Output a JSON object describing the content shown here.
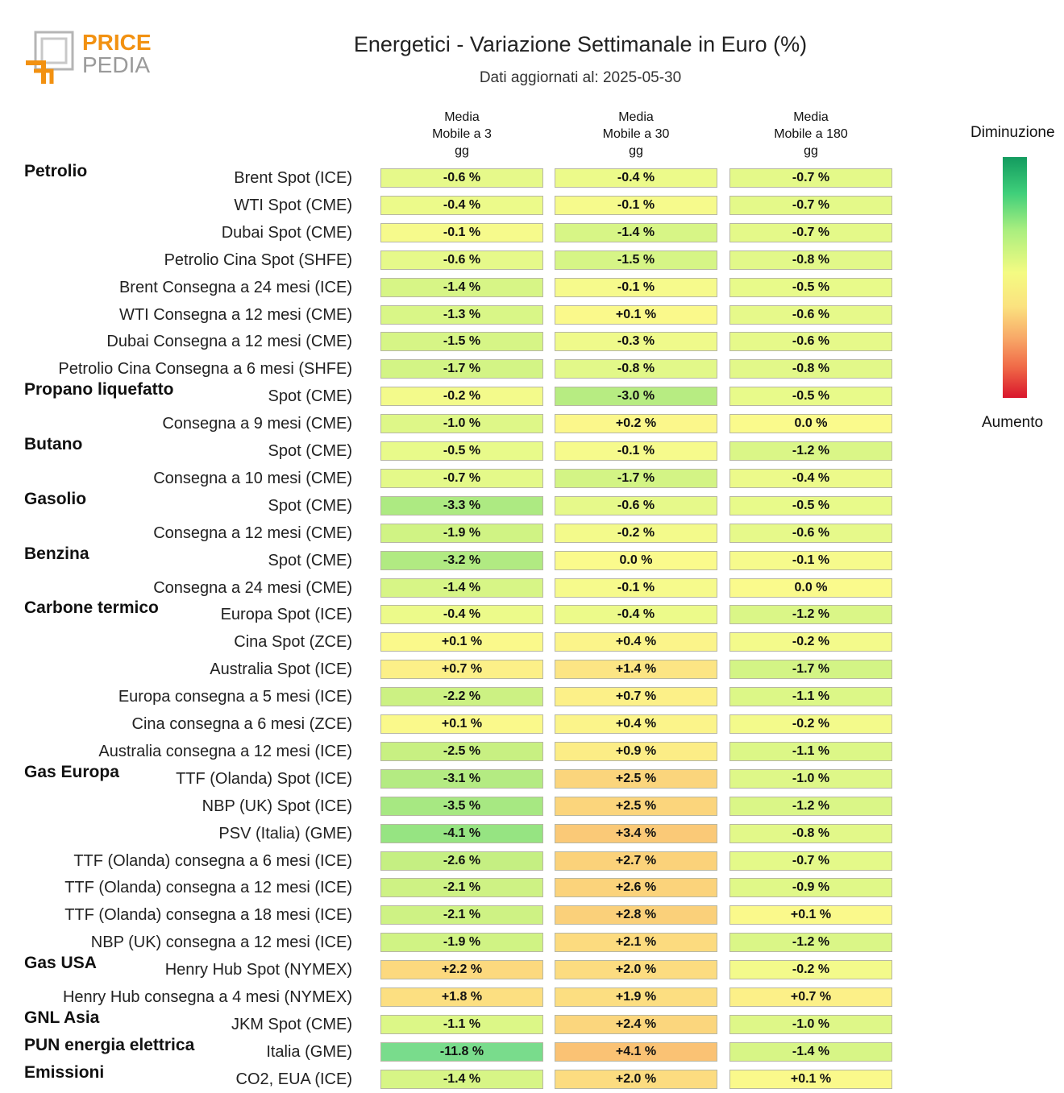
{
  "brand": {
    "line1": "PRICE",
    "line2": "PEDIA"
  },
  "title": "Energetici - Variazione Settimanale in Euro (%)",
  "subtitle": "Dati aggiornati al: 2025-05-30",
  "legend": {
    "top": "Diminuzione",
    "bottom": "Aumento"
  },
  "chart_data": {
    "type": "table",
    "columns": [
      "Media\nMobile a 3\ngg",
      "Media\nMobile a 30\ngg",
      "Media\nMobile a 180\ngg"
    ],
    "value_format": "percent",
    "rows": [
      {
        "group": "Petrolio",
        "label": "Brent Spot (ICE)",
        "values": [
          "-0.6 %",
          "-0.4 %",
          "-0.7 %"
        ]
      },
      {
        "group": "",
        "label": "WTI Spot (CME)",
        "values": [
          "-0.4 %",
          "-0.1 %",
          "-0.7 %"
        ]
      },
      {
        "group": "",
        "label": "Dubai Spot (CME)",
        "values": [
          "-0.1 %",
          "-1.4 %",
          "-0.7 %"
        ]
      },
      {
        "group": "",
        "label": "Petrolio Cina Spot (SHFE)",
        "values": [
          "-0.6 %",
          "-1.5 %",
          "-0.8 %"
        ]
      },
      {
        "group": "",
        "label": "Brent Consegna a 24 mesi (ICE)",
        "values": [
          "-1.4 %",
          "-0.1 %",
          "-0.5 %"
        ]
      },
      {
        "group": "",
        "label": "WTI Consegna a 12 mesi (CME)",
        "values": [
          "-1.3 %",
          "+0.1 %",
          "-0.6 %"
        ]
      },
      {
        "group": "",
        "label": "Dubai Consegna a 12 mesi (CME)",
        "values": [
          "-1.5 %",
          "-0.3 %",
          "-0.6 %"
        ]
      },
      {
        "group": "",
        "label": "Petrolio Cina Consegna a 6 mesi (SHFE)",
        "values": [
          "-1.7 %",
          "-0.8 %",
          "-0.8 %"
        ]
      },
      {
        "group": "Propano liquefatto",
        "label": "Spot (CME)",
        "values": [
          "-0.2 %",
          "-3.0 %",
          "-0.5 %"
        ]
      },
      {
        "group": "",
        "label": "Consegna a 9 mesi (CME)",
        "values": [
          "-1.0 %",
          "+0.2 %",
          "0.0 %"
        ]
      },
      {
        "group": "Butano",
        "label": "Spot (CME)",
        "values": [
          "-0.5 %",
          "-0.1 %",
          "-1.2 %"
        ]
      },
      {
        "group": "",
        "label": "Consegna a 10 mesi (CME)",
        "values": [
          "-0.7 %",
          "-1.7 %",
          "-0.4 %"
        ]
      },
      {
        "group": "Gasolio",
        "label": "Spot (CME)",
        "values": [
          "-3.3 %",
          "-0.6 %",
          "-0.5 %"
        ]
      },
      {
        "group": "",
        "label": "Consegna a 12 mesi (CME)",
        "values": [
          "-1.9 %",
          "-0.2 %",
          "-0.6 %"
        ]
      },
      {
        "group": "Benzina",
        "label": "Spot (CME)",
        "values": [
          "-3.2 %",
          "0.0 %",
          "-0.1 %"
        ]
      },
      {
        "group": "",
        "label": "Consegna a 24 mesi (CME)",
        "values": [
          "-1.4 %",
          "-0.1 %",
          "0.0 %"
        ]
      },
      {
        "group": "Carbone termico",
        "label": "Europa Spot (ICE)",
        "values": [
          "-0.4 %",
          "-0.4 %",
          "-1.2 %"
        ]
      },
      {
        "group": "",
        "label": "Cina Spot (ZCE)",
        "values": [
          "+0.1 %",
          "+0.4 %",
          "-0.2 %"
        ]
      },
      {
        "group": "",
        "label": "Australia Spot (ICE)",
        "values": [
          "+0.7 %",
          "+1.4 %",
          "-1.7 %"
        ]
      },
      {
        "group": "",
        "label": "Europa consegna a 5 mesi (ICE)",
        "values": [
          "-2.2 %",
          "+0.7 %",
          "-1.1 %"
        ]
      },
      {
        "group": "",
        "label": "Cina consegna a 6 mesi (ZCE)",
        "values": [
          "+0.1 %",
          "+0.4 %",
          "-0.2 %"
        ]
      },
      {
        "group": "",
        "label": "Australia consegna a 12 mesi (ICE)",
        "values": [
          "-2.5 %",
          "+0.9 %",
          "-1.1 %"
        ]
      },
      {
        "group": "Gas Europa",
        "label": "TTF (Olanda) Spot (ICE)",
        "values": [
          "-3.1 %",
          "+2.5 %",
          "-1.0 %"
        ]
      },
      {
        "group": "",
        "label": "NBP (UK) Spot (ICE)",
        "values": [
          "-3.5 %",
          "+2.5 %",
          "-1.2 %"
        ]
      },
      {
        "group": "",
        "label": "PSV (Italia) (GME)",
        "values": [
          "-4.1 %",
          "+3.4 %",
          "-0.8 %"
        ]
      },
      {
        "group": "",
        "label": "TTF (Olanda) consegna a 6 mesi (ICE)",
        "values": [
          "-2.6 %",
          "+2.7 %",
          "-0.7 %"
        ]
      },
      {
        "group": "",
        "label": "TTF (Olanda) consegna a 12 mesi (ICE)",
        "values": [
          "-2.1 %",
          "+2.6 %",
          "-0.9 %"
        ]
      },
      {
        "group": "",
        "label": "TTF (Olanda) consegna a 18 mesi (ICE)",
        "values": [
          "-2.1 %",
          "+2.8 %",
          "+0.1 %"
        ]
      },
      {
        "group": "",
        "label": "NBP (UK) consegna a 12 mesi (ICE)",
        "values": [
          "-1.9 %",
          "+2.1 %",
          "-1.2 %"
        ]
      },
      {
        "group": "Gas USA",
        "label": "Henry Hub Spot (NYMEX)",
        "values": [
          "+2.2 %",
          "+2.0 %",
          "-0.2 %"
        ]
      },
      {
        "group": "",
        "label": "Henry Hub consegna a 4 mesi (NYMEX)",
        "values": [
          "+1.8 %",
          "+1.9 %",
          "+0.7 %"
        ]
      },
      {
        "group": "GNL Asia",
        "label": "JKM Spot (CME)",
        "values": [
          "-1.1 %",
          "+2.4 %",
          "-1.0 %"
        ]
      },
      {
        "group": "PUN energia elettrica",
        "label": "Italia (GME)",
        "values": [
          "-11.8 %",
          "+4.1 %",
          "-1.4 %"
        ]
      },
      {
        "group": "Emissioni",
        "label": "CO2, EUA (ICE)",
        "values": [
          "-1.4 %",
          "+2.0 %",
          "+0.1 %"
        ]
      }
    ]
  }
}
